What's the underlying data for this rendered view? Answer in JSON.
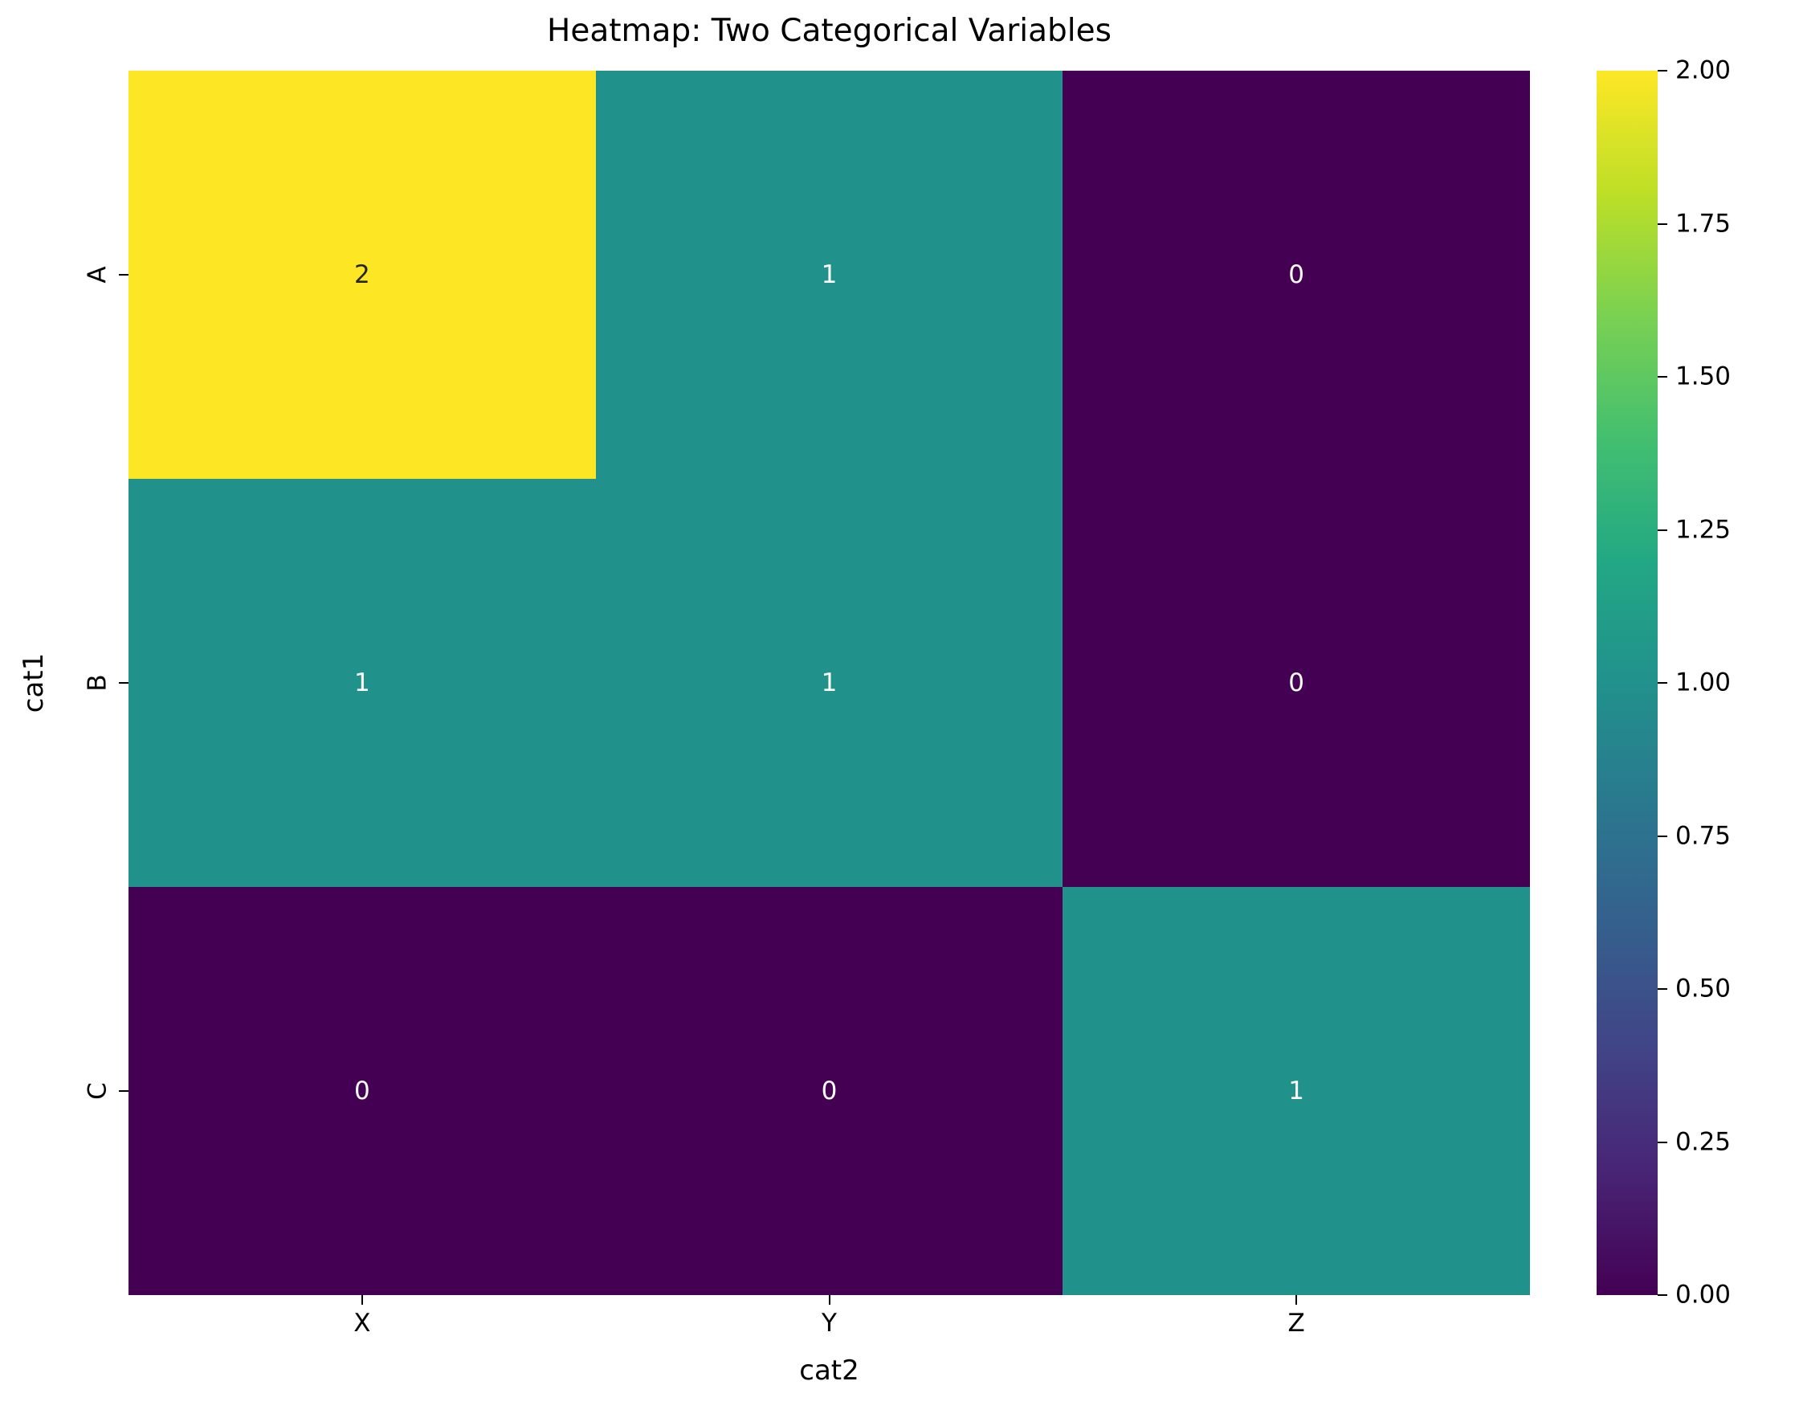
{
  "figure": {
    "background_color": "#ffffff"
  },
  "chart_data": {
    "type": "heatmap",
    "title": "Heatmap: Two Categorical Variables",
    "xlabel": "cat2",
    "ylabel": "cat1",
    "x_categories": [
      "X",
      "Y",
      "Z"
    ],
    "y_categories": [
      "A",
      "B",
      "C"
    ],
    "matrix": [
      [
        2,
        1,
        0
      ],
      [
        1,
        1,
        0
      ],
      [
        0,
        0,
        1
      ]
    ],
    "vmin": 0,
    "vmax": 2,
    "annotated": true,
    "grid": false,
    "legend_position": "right-colorbar",
    "colormap": {
      "name": "viridis",
      "stops": [
        "#440154",
        "#482475",
        "#414487",
        "#355f8d",
        "#2a788e",
        "#21918c",
        "#22a884",
        "#44bf70",
        "#7ad151",
        "#bddf26",
        "#fde725"
      ]
    },
    "colorbar": {
      "ticks": [
        "2.00",
        "1.75",
        "1.50",
        "1.25",
        "1.00",
        "0.75",
        "0.50",
        "0.25",
        "0.00"
      ],
      "tick_values": [
        2,
        1.75,
        1.5,
        1.25,
        1,
        0.75,
        0.5,
        0.25,
        0
      ]
    },
    "annotation_colors": {
      "dark": "#262626",
      "light": "#ffffff"
    }
  }
}
